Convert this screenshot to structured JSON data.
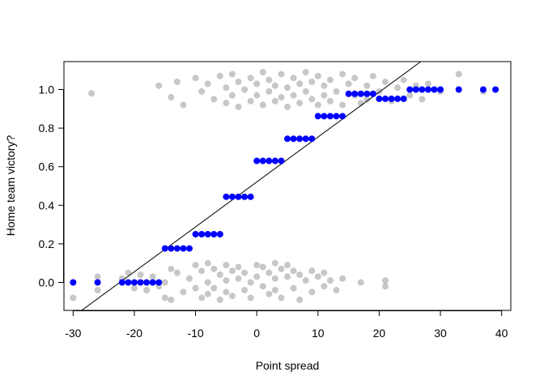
{
  "chart_data": {
    "type": "scatter",
    "xlabel": "Point spread",
    "ylabel": "Home team victory?",
    "xlim": [
      -31.5,
      41.5
    ],
    "ylim": [
      -0.145,
      1.145
    ],
    "xticks": [
      -30,
      -20,
      -10,
      0,
      10,
      20,
      30,
      40
    ],
    "yticks": [
      0.0,
      0.2,
      0.4,
      0.6,
      0.8,
      1.0
    ],
    "ytick_labels": [
      "0.0",
      "0.2",
      "0.4",
      "0.6",
      "0.8",
      "1.0"
    ],
    "grid": false,
    "colors": {
      "observed": "#000000",
      "fitted": "#0000ff",
      "fit_line": "#000000"
    },
    "series": [
      {
        "values": [
          [
            -30,
            -0.08
          ],
          [
            -26,
            0.03
          ],
          [
            -26,
            -0.04
          ],
          [
            -22,
            0.02
          ],
          [
            -21,
            0.05
          ],
          [
            -20,
            -0.03
          ],
          [
            -19,
            0.04
          ],
          [
            -18,
            -0.04
          ],
          [
            -17,
            0.03
          ],
          [
            -16,
            -0.02
          ],
          [
            -15,
            0.0
          ],
          [
            -15,
            -0.08
          ],
          [
            -14,
            0.07
          ],
          [
            -14,
            -0.09
          ],
          [
            -13,
            0.05
          ],
          [
            -12,
            -0.05
          ],
          [
            -11,
            0.02
          ],
          [
            -10,
            0.09
          ],
          [
            -10,
            -0.03
          ],
          [
            -9,
            0.06
          ],
          [
            -9,
            -0.08
          ],
          [
            -8,
            0.1
          ],
          [
            -8,
            0.0
          ],
          [
            -8,
            -0.06
          ],
          [
            -7,
            0.07
          ],
          [
            -7,
            -0.03
          ],
          [
            -6,
            0.04
          ],
          [
            -6,
            -0.09
          ],
          [
            -5,
            0.09
          ],
          [
            -5,
            0.01
          ],
          [
            -5,
            -0.05
          ],
          [
            -4,
            0.06
          ],
          [
            -4,
            -0.07
          ],
          [
            -3,
            0.02
          ],
          [
            -3,
            0.08
          ],
          [
            -2,
            -0.04
          ],
          [
            -2,
            0.05
          ],
          [
            -1,
            0.0
          ],
          [
            -1,
            -0.08
          ],
          [
            0,
            0.03
          ],
          [
            0,
            0.09
          ],
          [
            1,
            0.08
          ],
          [
            1,
            -0.02
          ],
          [
            2,
            0.05
          ],
          [
            2,
            -0.06
          ],
          [
            3,
            0.1
          ],
          [
            3,
            0.02
          ],
          [
            3,
            -0.04
          ],
          [
            4,
            0.07
          ],
          [
            4,
            -0.08
          ],
          [
            5,
            0.03
          ],
          [
            5,
            0.09
          ],
          [
            6,
            -0.03
          ],
          [
            6,
            0.06
          ],
          [
            7,
            0.04
          ],
          [
            7,
            -0.09
          ],
          [
            8,
            0.01
          ],
          [
            9,
            0.06
          ],
          [
            9,
            -0.05
          ],
          [
            10,
            0.03
          ],
          [
            11,
            0.05
          ],
          [
            11,
            -0.02
          ],
          [
            12,
            0.01
          ],
          [
            13,
            -0.04
          ],
          [
            14,
            0.02
          ],
          [
            17,
            0.0
          ],
          [
            21,
            -0.02
          ],
          [
            21,
            0.01
          ],
          [
            -27,
            0.98
          ],
          [
            -16,
            1.02
          ],
          [
            -14,
            0.96
          ],
          [
            -13,
            1.04
          ],
          [
            -12,
            0.92
          ],
          [
            -10,
            1.06
          ],
          [
            -9,
            0.99
          ],
          [
            -8,
            1.03
          ],
          [
            -7,
            0.95
          ],
          [
            -6,
            1.07
          ],
          [
            -5,
            0.93
          ],
          [
            -5,
            1.01
          ],
          [
            -4,
            1.08
          ],
          [
            -4,
            0.97
          ],
          [
            -3,
            1.04
          ],
          [
            -3,
            0.91
          ],
          [
            -2,
            1.0
          ],
          [
            -1,
            1.06
          ],
          [
            -1,
            0.94
          ],
          [
            0,
            1.03
          ],
          [
            0,
            0.97
          ],
          [
            1,
            1.09
          ],
          [
            1,
            0.92
          ],
          [
            2,
            1.05
          ],
          [
            2,
            0.99
          ],
          [
            3,
            1.02
          ],
          [
            3,
            0.94
          ],
          [
            4,
            1.08
          ],
          [
            4,
            0.96
          ],
          [
            5,
            1.01
          ],
          [
            5,
            0.91
          ],
          [
            6,
            1.06
          ],
          [
            6,
            0.97
          ],
          [
            7,
            1.03
          ],
          [
            7,
            0.93
          ],
          [
            8,
            1.09
          ],
          [
            8,
            0.99
          ],
          [
            9,
            1.04
          ],
          [
            9,
            0.95
          ],
          [
            10,
            1.07
          ],
          [
            10,
            0.92
          ],
          [
            11,
            1.02
          ],
          [
            11,
            0.97
          ],
          [
            12,
            1.05
          ],
          [
            12,
            0.94
          ],
          [
            13,
            0.99
          ],
          [
            14,
            1.08
          ],
          [
            14,
            0.92
          ],
          [
            15,
            1.03
          ],
          [
            16,
            0.97
          ],
          [
            16,
            1.06
          ],
          [
            17,
            0.93
          ],
          [
            18,
            1.02
          ],
          [
            18,
            0.95
          ],
          [
            19,
            1.07
          ],
          [
            20,
            0.99
          ],
          [
            21,
            1.04
          ],
          [
            22,
            0.94
          ],
          [
            23,
            1.01
          ],
          [
            24,
            1.05
          ],
          [
            25,
            0.97
          ],
          [
            26,
            1.02
          ],
          [
            27,
            0.95
          ],
          [
            28,
            1.03
          ],
          [
            30,
            0.99
          ],
          [
            33,
            1.08
          ],
          [
            37,
            0.99
          ]
        ]
      },
      {
        "values": [
          [
            -30,
            0.0
          ],
          [
            -26,
            0.0
          ],
          [
            -22,
            0.0
          ],
          [
            -21,
            0.0
          ],
          [
            -20,
            0.0
          ],
          [
            -19,
            0.0
          ],
          [
            -18,
            0.0
          ],
          [
            -17,
            0.0
          ],
          [
            -16,
            0.0
          ],
          [
            -15,
            0.176
          ],
          [
            -14,
            0.176
          ],
          [
            -13,
            0.176
          ],
          [
            -12,
            0.176
          ],
          [
            -11,
            0.176
          ],
          [
            -10,
            0.25
          ],
          [
            -9,
            0.25
          ],
          [
            -8,
            0.25
          ],
          [
            -7,
            0.25
          ],
          [
            -6,
            0.25
          ],
          [
            -5,
            0.444
          ],
          [
            -4,
            0.444
          ],
          [
            -3,
            0.444
          ],
          [
            -2,
            0.444
          ],
          [
            -1,
            0.444
          ],
          [
            0,
            0.63
          ],
          [
            1,
            0.63
          ],
          [
            2,
            0.63
          ],
          [
            3,
            0.63
          ],
          [
            4,
            0.63
          ],
          [
            5,
            0.745
          ],
          [
            6,
            0.745
          ],
          [
            7,
            0.745
          ],
          [
            8,
            0.745
          ],
          [
            9,
            0.745
          ],
          [
            10,
            0.862
          ],
          [
            11,
            0.862
          ],
          [
            12,
            0.862
          ],
          [
            13,
            0.862
          ],
          [
            14,
            0.862
          ],
          [
            15,
            0.978
          ],
          [
            16,
            0.978
          ],
          [
            17,
            0.978
          ],
          [
            18,
            0.978
          ],
          [
            19,
            0.978
          ],
          [
            20,
            0.952
          ],
          [
            21,
            0.952
          ],
          [
            22,
            0.952
          ],
          [
            23,
            0.952
          ],
          [
            24,
            0.952
          ],
          [
            25,
            1.0
          ],
          [
            26,
            1.0
          ],
          [
            27,
            1.0
          ],
          [
            28,
            1.0
          ],
          [
            29,
            1.0
          ],
          [
            30,
            1.0
          ],
          [
            33,
            1.0
          ],
          [
            37,
            1.0
          ],
          [
            39,
            1.0
          ]
        ]
      }
    ],
    "fit_line": {
      "type": "line",
      "x": [
        -28.6,
        26.8
      ],
      "y": [
        -0.145,
        1.145
      ]
    }
  }
}
